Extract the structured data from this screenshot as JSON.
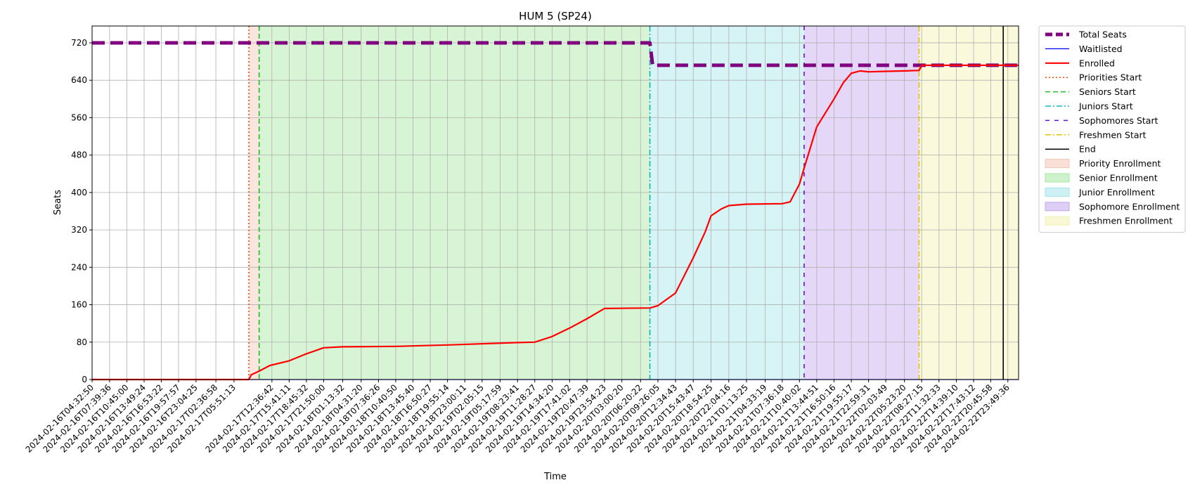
{
  "chart_data": {
    "type": "line",
    "title": "HUM 5 (SP24)",
    "xlabel": "Time",
    "ylabel": "Seats",
    "x_range": [
      "2024-02-16T04:32:50",
      "2024-02-23T01:44:00"
    ],
    "ylim": [
      0,
      756
    ],
    "grid": true,
    "legend_position": "outside-right",
    "yticks": [
      0,
      80,
      160,
      240,
      320,
      400,
      480,
      560,
      640,
      720
    ],
    "xticks": [
      "2024-02-16T04:32:50",
      "2024-02-16T07:39:36",
      "2024-02-16T10:45:00",
      "2024-02-16T13:49:24",
      "2024-02-16T16:53:22",
      "2024-02-16T19:57:57",
      "2024-02-16T23:04:25",
      "2024-02-17T02:36:58",
      "2024-02-17T05:51:13",
      "2024-02-17T12:36:42",
      "2024-02-17T15:41:11",
      "2024-02-17T18:45:32",
      "2024-02-17T21:50:00",
      "2024-02-18T01:13:32",
      "2024-02-18T04:31:20",
      "2024-02-18T07:36:26",
      "2024-02-18T10:40:50",
      "2024-02-18T13:45:40",
      "2024-02-18T16:50:27",
      "2024-02-18T19:55:14",
      "2024-02-18T23:00:11",
      "2024-02-19T02:05:15",
      "2024-02-19T05:17:59",
      "2024-02-19T08:23:41",
      "2024-02-19T11:28:27",
      "2024-02-19T14:34:20",
      "2024-02-19T17:41:02",
      "2024-02-19T20:47:39",
      "2024-02-19T23:54:23",
      "2024-02-20T03:00:20",
      "2024-02-20T06:20:22",
      "2024-02-20T09:26:05",
      "2024-02-20T12:34:43",
      "2024-02-20T15:43:47",
      "2024-02-20T18:54:25",
      "2024-02-20T22:04:16",
      "2024-02-21T01:13:25",
      "2024-02-21T04:33:19",
      "2024-02-21T07:36:18",
      "2024-02-21T10:40:02",
      "2024-02-21T13:44:51",
      "2024-02-21T16:50:16",
      "2024-02-21T19:55:17",
      "2024-02-21T22:59:31",
      "2024-02-22T02:03:49",
      "2024-02-22T05:23:20",
      "2024-02-22T08:27:15",
      "2024-02-22T11:32:33",
      "2024-02-22T14:39:10",
      "2024-02-22T17:43:12",
      "2024-02-22T20:45:58",
      "2024-02-22T23:49:36"
    ],
    "phases": [
      {
        "name": "Priority Enrollment",
        "start": "2024-02-17T08:30:00",
        "end": "2024-02-17T10:20:00",
        "color": "#f4c7b5"
      },
      {
        "name": "Senior Enrollment",
        "start": "2024-02-17T10:20:00",
        "end": "2024-02-20T08:00:00",
        "color": "#a6e8a0"
      },
      {
        "name": "Junior Enrollment",
        "start": "2024-02-20T08:00:00",
        "end": "2024-02-21T11:30:00",
        "color": "#a3e4ea"
      },
      {
        "name": "Sophomore Enrollment",
        "start": "2024-02-21T11:30:00",
        "end": "2024-02-22T08:00:00",
        "color": "#c3a6ee"
      },
      {
        "name": "Freshmen Enrollment",
        "start": "2024-02-22T08:00:00",
        "end": "2024-02-23T01:44:00",
        "color": "#f3f2b0"
      }
    ],
    "markers": [
      {
        "name": "Priorities Start",
        "x": "2024-02-17T08:30:00",
        "color": "#ff4500",
        "dash": "2,3"
      },
      {
        "name": "Seniors Start",
        "x": "2024-02-17T10:20:00",
        "color": "#22bb22",
        "dash": "7,4"
      },
      {
        "name": "Juniors Start",
        "x": "2024-02-20T08:00:00",
        "color": "#12b5b5",
        "dash": "8,3,2,3"
      },
      {
        "name": "Sophomores Start",
        "x": "2024-02-21T11:30:00",
        "color": "#6a0dd6",
        "dash": "6,7"
      },
      {
        "name": "Freshmen Start",
        "x": "2024-02-22T08:00:00",
        "color": "#e0c400",
        "dash": "8,3,2,3"
      },
      {
        "name": "End",
        "x": "2024-02-22T23:00:00",
        "color": "#000000",
        "dash": ""
      }
    ],
    "series": [
      {
        "name": "Total Seats",
        "color": "#800080",
        "style": "dashed-thick",
        "x": [
          "2024-02-16T04:32:50",
          "2024-02-20T08:00:00",
          "2024-02-20T08:30:00",
          "2024-02-23T01:44:00"
        ],
        "y": [
          720,
          720,
          672,
          672
        ]
      },
      {
        "name": "Waitlisted",
        "color": "#0000ff",
        "style": "solid-thin",
        "x": [
          "2024-02-16T04:32:50",
          "2024-02-23T01:44:00"
        ],
        "y": [
          0,
          0
        ]
      },
      {
        "name": "Enrolled",
        "color": "#ff0000",
        "style": "solid",
        "x": [
          "2024-02-16T04:32:50",
          "2024-02-17T08:30:00",
          "2024-02-17T08:55:00",
          "2024-02-17T10:20:00",
          "2024-02-17T12:15:00",
          "2024-02-17T15:40:00",
          "2024-02-17T18:45:00",
          "2024-02-17T21:50:00",
          "2024-02-18T01:13:00",
          "2024-02-18T10:40:00",
          "2024-02-18T19:55:00",
          "2024-02-19T08:23:00",
          "2024-02-19T11:28:00",
          "2024-02-19T14:34:00",
          "2024-02-19T17:41:00",
          "2024-02-19T20:47:00",
          "2024-02-19T23:54:00",
          "2024-02-20T08:00:00",
          "2024-02-20T09:26:00",
          "2024-02-20T12:34:00",
          "2024-02-20T15:43:00",
          "2024-02-20T17:50:00",
          "2024-02-20T18:54:00",
          "2024-02-20T20:45:00",
          "2024-02-20T22:04:00",
          "2024-02-21T01:13:00",
          "2024-02-21T07:36:00",
          "2024-02-21T09:00:00",
          "2024-02-21T10:40:00",
          "2024-02-21T11:30:00",
          "2024-02-21T13:44:00",
          "2024-02-21T16:50:00",
          "2024-02-21T18:30:00",
          "2024-02-21T19:55:00",
          "2024-02-21T21:30:00",
          "2024-02-21T22:59:00",
          "2024-02-22T02:03:00",
          "2024-02-22T05:23:00",
          "2024-02-22T08:00:00",
          "2024-02-22T08:30:00",
          "2024-02-23T01:44:00"
        ],
        "y": [
          0,
          0,
          10,
          18,
          30,
          40,
          55,
          68,
          70,
          71,
          74,
          79,
          80,
          92,
          110,
          130,
          152,
          153,
          158,
          185,
          260,
          315,
          350,
          365,
          372,
          375,
          376,
          380,
          418,
          452,
          540,
          600,
          635,
          655,
          660,
          658,
          659,
          660,
          661,
          672,
          672
        ]
      }
    ],
    "legend": [
      {
        "label": "Total Seats",
        "kind": "line",
        "color": "#800080",
        "width": 5,
        "dash": "10,5"
      },
      {
        "label": "Waitlisted",
        "kind": "line",
        "color": "#0000ff",
        "width": 1.2,
        "dash": ""
      },
      {
        "label": "Enrolled",
        "kind": "line",
        "color": "#ff0000",
        "width": 2.2,
        "dash": ""
      },
      {
        "label": "Priorities Start",
        "kind": "line",
        "color": "#ff4500",
        "width": 1.5,
        "dash": "2,3"
      },
      {
        "label": "Seniors Start",
        "kind": "line",
        "color": "#22bb22",
        "width": 1.5,
        "dash": "7,4"
      },
      {
        "label": "Juniors Start",
        "kind": "line",
        "color": "#12b5b5",
        "width": 1.5,
        "dash": "8,3,2,3"
      },
      {
        "label": "Sophomores Start",
        "kind": "line",
        "color": "#6a0dd6",
        "width": 1.5,
        "dash": "6,7"
      },
      {
        "label": "Freshmen Start",
        "kind": "line",
        "color": "#e0c400",
        "width": 1.5,
        "dash": "8,3,2,3"
      },
      {
        "label": "End",
        "kind": "line",
        "color": "#000000",
        "width": 1.5,
        "dash": ""
      },
      {
        "label": "Priority Enrollment",
        "kind": "patch",
        "color": "#f4c7b5"
      },
      {
        "label": "Senior Enrollment",
        "kind": "patch",
        "color": "#a6e8a0"
      },
      {
        "label": "Junior Enrollment",
        "kind": "patch",
        "color": "#a3e4ea"
      },
      {
        "label": "Sophomore Enrollment",
        "kind": "patch",
        "color": "#c3a6ee"
      },
      {
        "label": "Freshmen Enrollment",
        "kind": "patch",
        "color": "#f3f2b0"
      }
    ]
  }
}
